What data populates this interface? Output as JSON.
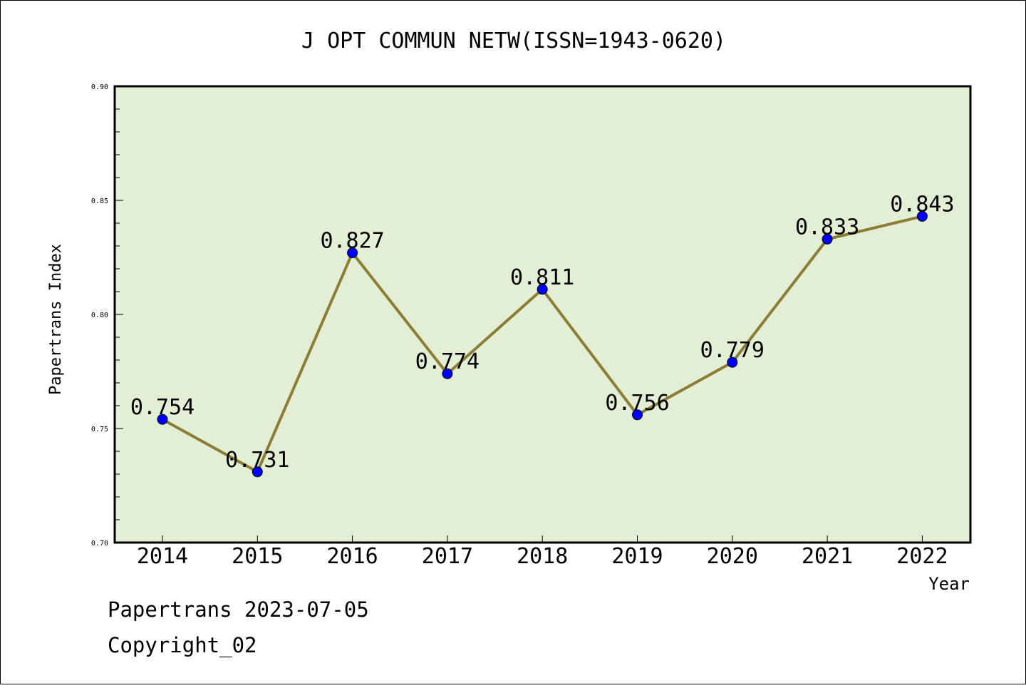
{
  "chart_data": {
    "type": "line",
    "title": "J OPT COMMUN NETW(ISSN=1943-0620)",
    "xlabel": "Year",
    "ylabel": "Papertrans Index",
    "x": [
      "2014",
      "2015",
      "2016",
      "2017",
      "2018",
      "2019",
      "2020",
      "2021",
      "2022"
    ],
    "series": [
      {
        "values": [
          0.754,
          0.731,
          0.827,
          0.774,
          0.811,
          0.756,
          0.779,
          0.833,
          0.843
        ],
        "data_labels": [
          "0.754",
          "0.731",
          "0.827",
          "0.774",
          "0.811",
          "0.756",
          "0.779",
          "0.833",
          "0.843"
        ]
      }
    ],
    "ylim": [
      0.7,
      0.9
    ],
    "yticks": [
      "0.70",
      "0.75",
      "0.80",
      "0.85",
      "0.90"
    ],
    "grid": false,
    "colors": {
      "plot_background": "#e2efd5",
      "line": "#8b7d35",
      "marker": "#0000ff"
    }
  },
  "footer": {
    "line1": "Papertrans 2023-07-05",
    "line2": "Copyright_02"
  }
}
